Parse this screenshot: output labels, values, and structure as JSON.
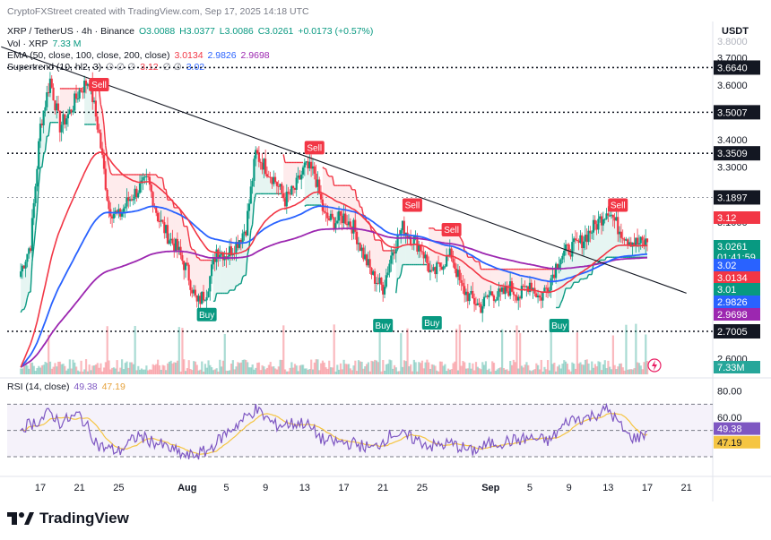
{
  "header": {
    "created_by": "CryptoFXStreet created with TradingView.com, Sep 17, 2025 14:18 UTC",
    "symbol": "XRP / TetherUS · 4h · Binance",
    "ohlc": {
      "o": "O3.0088",
      "h": "H3.0377",
      "l": "L3.0086",
      "c": "C3.0261",
      "chg": "+0.0173 (+0.57%)"
    },
    "vol_label": "Vol · XRP",
    "vol_value": "7.33 M",
    "ema_label": "EMA (50, close, 100, close, 200, close)",
    "ema_values": [
      "3.0134",
      "2.9826",
      "2.9698"
    ],
    "st_label": "Supertrend (10, hl2, 3)",
    "st_values": [
      "3.12",
      "3.02"
    ],
    "st_glyphs": "∅ ∅ ∅"
  },
  "currency": "USDT",
  "brand": "TradingView",
  "rsi_header": {
    "label": "RSI (14, close)",
    "values": [
      "49.38",
      "47.19"
    ]
  },
  "colors": {
    "up": "#089981",
    "down": "#f23645",
    "ema50": "#f23645",
    "ema100": "#2962ff",
    "ema200": "#9c27b0",
    "st_up": "#089981",
    "st_down": "#f23645",
    "rsi": "#7e57c2",
    "rsi_ma": "#f5c542"
  },
  "chart_data": [
    {
      "type": "candlestick",
      "title": "XRP / TetherUS · 4h · Binance",
      "ylim": [
        2.55,
        3.78
      ],
      "y_ticks": [
        "3.7000",
        "3.6000",
        "3.4000",
        "3.3000",
        "3.1000",
        "2.6000"
      ],
      "x_ticks": [
        "17",
        "21",
        "25",
        "Aug",
        "5",
        "9",
        "13",
        "17",
        "21",
        "25",
        "Sep",
        "5",
        "9",
        "13",
        "17",
        "21"
      ],
      "ohlc_path": [
        [
          "Jul 15",
          2.92
        ],
        [
          "Jul 16",
          3.02
        ],
        [
          "Jul 17",
          3.45
        ],
        [
          "Jul 18",
          3.62
        ],
        [
          "Jul 19",
          3.45
        ],
        [
          "Jul 20",
          3.5
        ],
        [
          "Jul 21",
          3.58
        ],
        [
          "Jul 22",
          3.62
        ],
        [
          "Jul 23",
          3.42
        ],
        [
          "Jul 24",
          3.15
        ],
        [
          "Jul 25",
          3.12
        ],
        [
          "Jul 26",
          3.18
        ],
        [
          "Jul 27",
          3.22
        ],
        [
          "Jul 28",
          3.25
        ],
        [
          "Jul 29",
          3.12
        ],
        [
          "Jul 30",
          3.05
        ],
        [
          "Jul 31",
          3.0
        ],
        [
          "Aug 1",
          2.92
        ],
        [
          "Aug 2",
          2.8
        ],
        [
          "Aug 3",
          2.85
        ],
        [
          "Aug 4",
          3.0
        ],
        [
          "Aug 5",
          2.98
        ],
        [
          "Aug 6",
          3.02
        ],
        [
          "Aug 7",
          3.08
        ],
        [
          "Aug 8",
          3.35
        ],
        [
          "Aug 9",
          3.3
        ],
        [
          "Aug 10",
          3.25
        ],
        [
          "Aug 11",
          3.18
        ],
        [
          "Aug 12",
          3.22
        ],
        [
          "Aug 13",
          3.3
        ],
        [
          "Aug 14",
          3.28
        ],
        [
          "Aug 15",
          3.12
        ],
        [
          "Aug 16",
          3.1
        ],
        [
          "Aug 17",
          3.12
        ],
        [
          "Aug 18",
          3.08
        ],
        [
          "Aug 19",
          2.98
        ],
        [
          "Aug 20",
          2.9
        ],
        [
          "Aug 21",
          2.86
        ],
        [
          "Aug 22",
          3.0
        ],
        [
          "Aug 23",
          3.08
        ],
        [
          "Aug 24",
          3.04
        ],
        [
          "Aug 25",
          3.0
        ],
        [
          "Aug 26",
          2.9
        ],
        [
          "Aug 27",
          2.95
        ],
        [
          "Aug 28",
          2.98
        ],
        [
          "Aug 29",
          2.86
        ],
        [
          "Aug 30",
          2.82
        ],
        [
          "Aug 31",
          2.79
        ],
        [
          "Sep 1",
          2.84
        ],
        [
          "Sep 2",
          2.83
        ],
        [
          "Sep 3",
          2.86
        ],
        [
          "Sep 4",
          2.83
        ],
        [
          "Sep 5",
          2.88
        ],
        [
          "Sep 6",
          2.82
        ],
        [
          "Sep 7",
          2.88
        ],
        [
          "Sep 8",
          2.97
        ],
        [
          "Sep 9",
          3.0
        ],
        [
          "Sep 10",
          3.02
        ],
        [
          "Sep 11",
          3.06
        ],
        [
          "Sep 12",
          3.1
        ],
        [
          "Sep 13",
          3.15
        ],
        [
          "Sep 14",
          3.08
        ],
        [
          "Sep 15",
          3.04
        ],
        [
          "Sep 16",
          3.02
        ],
        [
          "Sep 17",
          3.026
        ]
      ],
      "ema50": {
        "name": "EMA 50",
        "last": 3.0134
      },
      "ema100": {
        "name": "EMA 100",
        "last": 2.9826
      },
      "ema200": {
        "name": "EMA 200",
        "last": 2.9698
      },
      "supertrend": {
        "last_up": 3.02,
        "last_down": 3.12
      },
      "levels": [
        {
          "value": 3.664,
          "label": "3.6640",
          "style": "dotted"
        },
        {
          "value": 3.5007,
          "label": "3.5007",
          "style": "dotted"
        },
        {
          "value": 3.3509,
          "label": "3.3509",
          "style": "dotted"
        },
        {
          "value": 3.1897,
          "label": "3.1897",
          "style": "dotted-light"
        },
        {
          "value": 2.7005,
          "label": "2.7005",
          "style": "dotted"
        }
      ],
      "trendline": {
        "from": [
          "Jul 13",
          3.74
        ],
        "to": [
          "Sep 21",
          2.84
        ]
      },
      "signals": [
        {
          "label": "Sell",
          "date": "Jul 23",
          "price": 3.6
        },
        {
          "label": "Sell",
          "date": "Aug 14",
          "price": 3.37
        },
        {
          "label": "Sell",
          "date": "Aug 24",
          "price": 3.16
        },
        {
          "label": "Sell",
          "date": "Aug 28",
          "price": 3.07
        },
        {
          "label": "Sell",
          "date": "Sep 14",
          "price": 3.16
        },
        {
          "label": "Buy",
          "date": "Aug 3",
          "price": 2.76
        },
        {
          "label": "Buy",
          "date": "Aug 21",
          "price": 2.72
        },
        {
          "label": "Buy",
          "date": "Aug 26",
          "price": 2.73
        },
        {
          "label": "Buy",
          "date": "Sep 8",
          "price": 2.72
        }
      ],
      "price_badges": [
        {
          "label": "3.12",
          "color": "#f23645"
        },
        {
          "label": "3.0261",
          "sub": "01:41:59",
          "color": "#089981"
        },
        {
          "label": "3.02",
          "color": "#2962ff"
        },
        {
          "label": "3.0134",
          "color": "#f23645"
        },
        {
          "label": "3.01",
          "color": "#089981"
        },
        {
          "label": "2.9826",
          "color": "#2962ff"
        },
        {
          "label": "2.9698",
          "color": "#9c27b0"
        },
        {
          "label": "7.33M",
          "color": "#26a69a"
        }
      ]
    },
    {
      "type": "line",
      "title": "RSI (14, close)",
      "ylim": [
        15,
        90
      ],
      "y_ticks": [
        "80.00",
        "60.00"
      ],
      "bands": [
        70,
        30
      ],
      "rsi_path": [
        [
          "Jul 15",
          52
        ],
        [
          "Jul 17",
          58
        ],
        [
          "Jul 18",
          64
        ],
        [
          "Jul 19",
          56
        ],
        [
          "Jul 21",
          62
        ],
        [
          "Jul 23",
          38
        ],
        [
          "Jul 25",
          34
        ],
        [
          "Jul 27",
          46
        ],
        [
          "Jul 29",
          40
        ],
        [
          "Aug 1",
          30
        ],
        [
          "Aug 3",
          34
        ],
        [
          "Aug 5",
          48
        ],
        [
          "Aug 8",
          66
        ],
        [
          "Aug 10",
          54
        ],
        [
          "Aug 13",
          56
        ],
        [
          "Aug 15",
          42
        ],
        [
          "Aug 18",
          40
        ],
        [
          "Aug 20",
          36
        ],
        [
          "Aug 22",
          48
        ],
        [
          "Aug 24",
          44
        ],
        [
          "Aug 26",
          38
        ],
        [
          "Aug 28",
          40
        ],
        [
          "Aug 30",
          34
        ],
        [
          "Sep 1",
          40
        ],
        [
          "Sep 3",
          42
        ],
        [
          "Sep 5",
          44
        ],
        [
          "Sep 7",
          42
        ],
        [
          "Sep 9",
          58
        ],
        [
          "Sep 11",
          60
        ],
        [
          "Sep 13",
          66
        ],
        [
          "Sep 15",
          46
        ],
        [
          "Sep 16",
          44
        ],
        [
          "Sep 17",
          49.38
        ]
      ],
      "rsi_last": 49.38,
      "rsi_ma_last": 47.19
    }
  ]
}
